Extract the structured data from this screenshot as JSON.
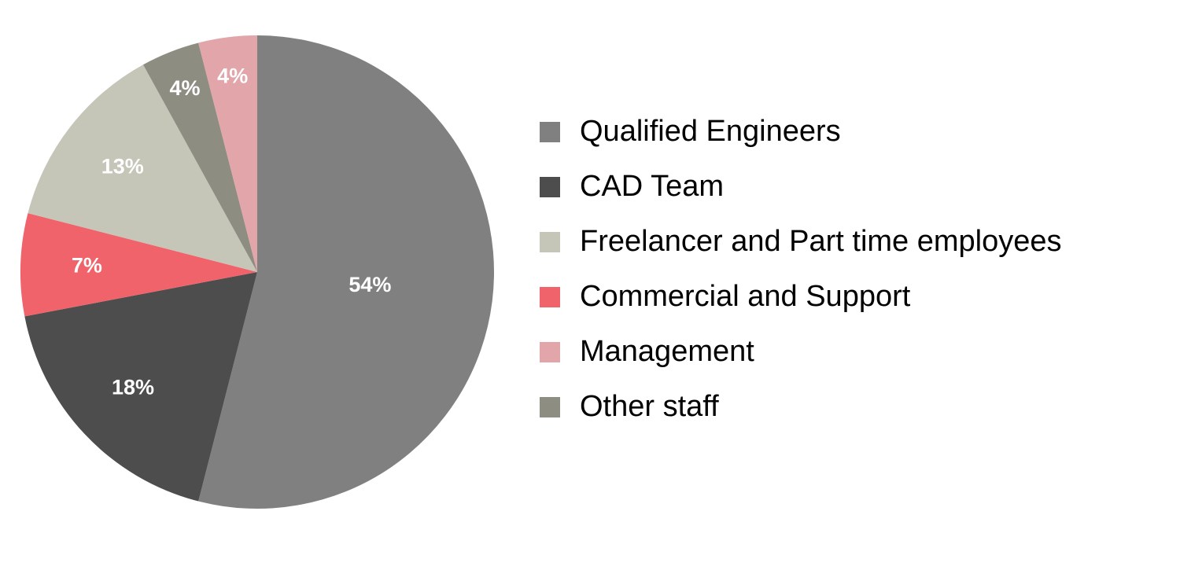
{
  "chart_data": {
    "type": "pie",
    "categories": [
      "Qualified Engineers",
      "CAD Team",
      "Commercial and Support",
      "Freelancer and Part time employees",
      "Other staff",
      "Management"
    ],
    "values": [
      54,
      18,
      7,
      13,
      4,
      4
    ],
    "value_labels": [
      "54%",
      "18%",
      "7%",
      "13%",
      "4%",
      "4%"
    ],
    "colors": [
      "#808080",
      "#4d4d4d",
      "#f0636a",
      "#c5c5b8",
      "#8e8d82",
      "#e2a5aa"
    ],
    "legend_order": [
      0,
      1,
      3,
      2,
      5,
      4
    ],
    "legend": "right"
  }
}
